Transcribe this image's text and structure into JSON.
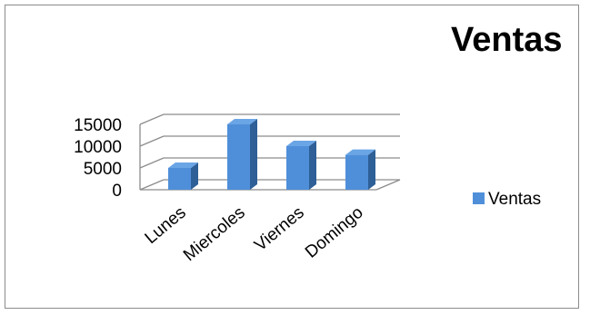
{
  "chart_data": {
    "type": "bar",
    "title": "Ventas",
    "categories": [
      "Lunes",
      "Miercoles",
      "Viernes",
      "Domingo"
    ],
    "series": [
      {
        "name": "Ventas",
        "values": [
          5000,
          15000,
          10000,
          8000
        ]
      }
    ],
    "ylim": [
      0,
      15000
    ],
    "yticks": [
      "0",
      "5000",
      "10000",
      "15000"
    ],
    "grid": true,
    "legend_position": "right",
    "style_3d": true,
    "colors": {
      "bar_front": "#4f8fd9",
      "bar_side": "#2e5f96",
      "bar_top": "#6aa5e6",
      "gridline": "#8c8c8c",
      "border": "#8c8c8c"
    }
  }
}
